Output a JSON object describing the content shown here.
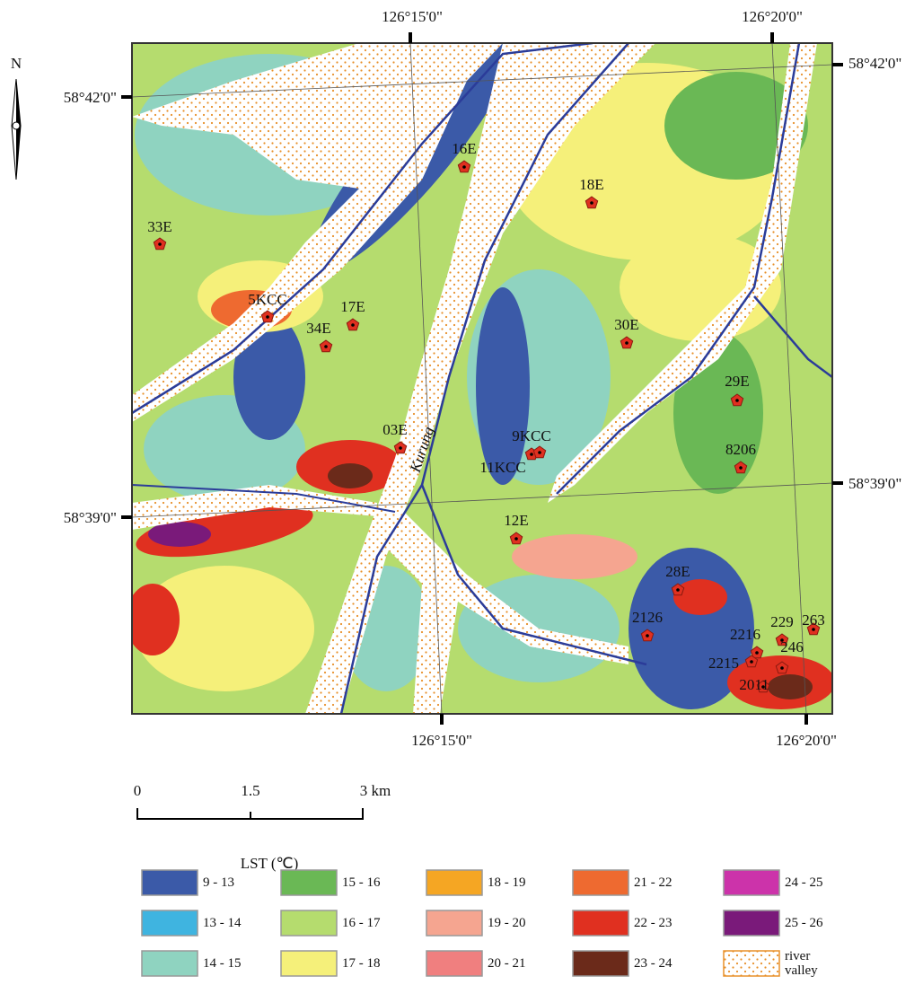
{
  "map": {
    "north": "N",
    "coordinates": {
      "top": [
        "126°15'0\"",
        "126°20'0\""
      ],
      "bottom": [
        "126°15'0\"",
        "126°20'0\""
      ],
      "left": [
        "58°42'0\"",
        "58°39'0\""
      ],
      "right": [
        "58°42'0\"",
        "58°39'0\""
      ]
    },
    "river": "Kurung",
    "sites": [
      "33E",
      "5KCC",
      "17E",
      "34E",
      "16E",
      "18E",
      "30E",
      "29E",
      "03E",
      "9KCC",
      "11KCC",
      "8206",
      "12E",
      "28E",
      "2126",
      "2216",
      "229",
      "263",
      "246",
      "2215",
      "2011"
    ],
    "scale_bar": [
      "0",
      "1.5",
      "3 km"
    ],
    "legend": {
      "title": "LST (℃)",
      "items": [
        {
          "label": "9 - 13",
          "color": "#3b5aa8"
        },
        {
          "label": "13 - 14",
          "color": "#3fb4e0"
        },
        {
          "label": "14 - 15",
          "color": "#8fd3c0"
        },
        {
          "label": "15 - 16",
          "color": "#6ab855"
        },
        {
          "label": "16 - 17",
          "color": "#b5dc6e"
        },
        {
          "label": "17 - 18",
          "color": "#f5f07a"
        },
        {
          "label": "18 - 19",
          "color": "#f5a623"
        },
        {
          "label": "19 - 20",
          "color": "#f5a590"
        },
        {
          "label": "20 - 21",
          "color": "#f07f7f"
        },
        {
          "label": "21 - 22",
          "color": "#ee6a30"
        },
        {
          "label": "22 - 23",
          "color": "#e03020"
        },
        {
          "label": "23 - 24",
          "color": "#6b2a1a"
        },
        {
          "label": "24 - 25",
          "color": "#cc33aa"
        },
        {
          "label": "25 - 26",
          "color": "#7a1a7a"
        },
        {
          "label": "river valley",
          "color": "#e8902a"
        }
      ]
    }
  }
}
